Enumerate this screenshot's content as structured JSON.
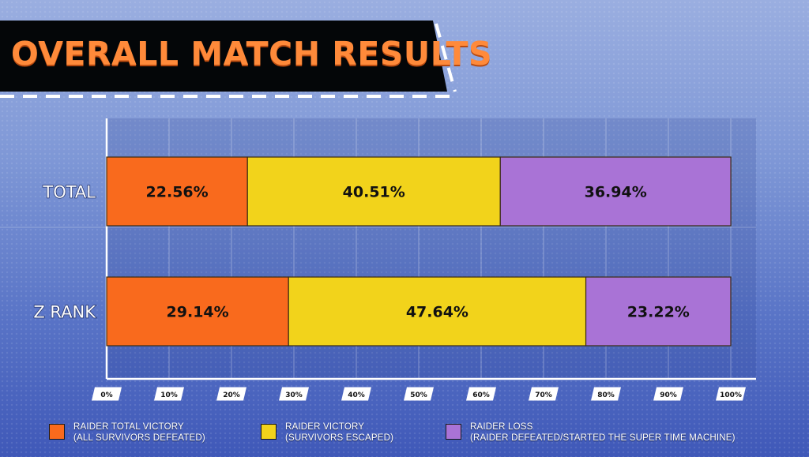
{
  "title": "OVERALL MATCH RESULTS",
  "chart_data": {
    "type": "bar",
    "orientation": "horizontal",
    "stacked": true,
    "title": "OVERALL MATCH RESULTS",
    "categories": [
      "TOTAL",
      "Z RANK"
    ],
    "series": [
      {
        "name": "RAIDER TOTAL VICTORY (ALL SURVIVORS DEFEATED)",
        "color": "#f96a1d",
        "values": [
          22.56,
          29.14
        ],
        "labels": [
          "22.56%",
          "29.14%"
        ]
      },
      {
        "name": "RAIDER VICTORY (SURVIVORS ESCAPED)",
        "color": "#f2d31b",
        "values": [
          40.51,
          47.64
        ],
        "labels": [
          "40.51%",
          "47.64%"
        ]
      },
      {
        "name": "RAIDER LOSS (RAIDER DEFEATED/STARTED THE SUPER TIME MACHINE)",
        "color": "#a973d6",
        "values": [
          36.94,
          23.22
        ],
        "labels": [
          "36.94%",
          "23.22%"
        ]
      }
    ],
    "xlim": [
      0,
      100
    ],
    "xticks": [
      "0%",
      "10%",
      "20%",
      "30%",
      "40%",
      "50%",
      "60%",
      "70%",
      "80%",
      "90%",
      "100%"
    ],
    "grid": true,
    "legend_position": "bottom"
  },
  "legend": [
    {
      "line1": "RAIDER TOTAL VICTORY",
      "line2": "(ALL SURVIVORS DEFEATED)",
      "color": "#f96a1d"
    },
    {
      "line1": "RAIDER VICTORY",
      "line2": "(SURVIVORS ESCAPED)",
      "color": "#f2d31b"
    },
    {
      "line1": "RAIDER LOSS",
      "line2": "(RAIDER DEFEATED/STARTED THE SUPER TIME MACHINE)",
      "color": "#a973d6"
    }
  ]
}
